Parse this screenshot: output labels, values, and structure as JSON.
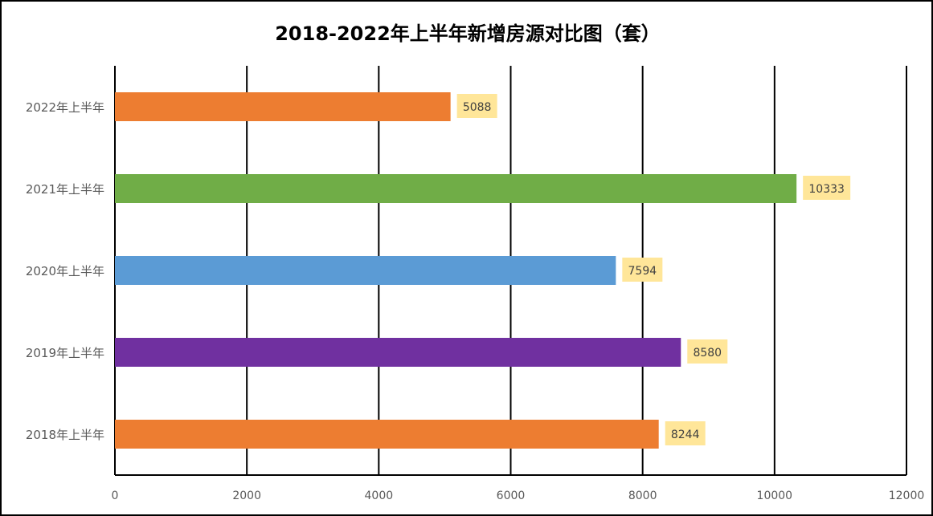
{
  "chart_data": {
    "type": "bar",
    "orientation": "horizontal",
    "title": "2018-2022年上半年新增房源对比图（套）",
    "categories": [
      "2022年上半年",
      "2021年上半年",
      "2020年上半年",
      "2019年上半年",
      "2018年上半年"
    ],
    "values": [
      5088,
      10333,
      7594,
      8580,
      8244
    ],
    "colors": [
      "#ED7D31",
      "#70AD47",
      "#5B9BD5",
      "#7030A0",
      "#ED7D31"
    ],
    "label_bg": "#FFE699",
    "xlim": [
      0,
      12000
    ],
    "xticks": [
      0,
      2000,
      4000,
      6000,
      8000,
      10000,
      12000
    ],
    "grid": true,
    "xlabel": "",
    "ylabel": ""
  }
}
